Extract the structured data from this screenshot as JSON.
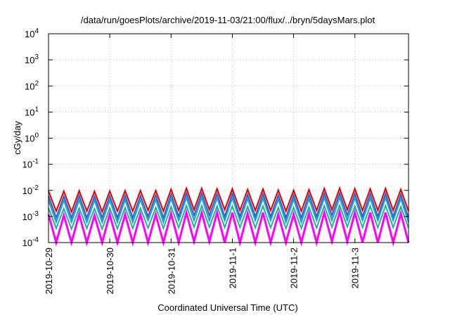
{
  "chart_data": {
    "type": "line",
    "title": "/data/run/goesPlots/archive/2019-11-03/21:00/flux/../bryn/5daysMars.plot",
    "xlabel": "Coordinated Universal Time (UTC)",
    "ylabel": "cGy/day",
    "yscale": "log",
    "ylim": [
      0.0001,
      10000
    ],
    "xlim": [
      "2019-10-29T00:00",
      "2019-11-03T21:00"
    ],
    "x_ticks": [
      "2019-10-29",
      "2019-10-30",
      "2019-10-31",
      "2019-11-1",
      "2019-11-2",
      "2019-11-3"
    ],
    "y_ticks": [
      {
        "value": 0.0001,
        "base": "10",
        "exp": "-4"
      },
      {
        "value": 0.001,
        "base": "10",
        "exp": "-3"
      },
      {
        "value": 0.01,
        "base": "10",
        "exp": "-2"
      },
      {
        "value": 0.1,
        "base": "10",
        "exp": "-1"
      },
      {
        "value": 1,
        "base": "10",
        "exp": "0"
      },
      {
        "value": 10,
        "base": "10",
        "exp": "1"
      },
      {
        "value": 100,
        "base": "10",
        "exp": "2"
      },
      {
        "value": 1000,
        "base": "10",
        "exp": "3"
      },
      {
        "value": 10000,
        "base": "10",
        "exp": "4"
      }
    ],
    "grid": true,
    "sawtooth_period_hours": 3,
    "series": [
      {
        "color": "#e00000",
        "peak": 0.0095,
        "trough": 0.0016,
        "values": [
          0.0095,
          0.0016,
          0.0093,
          0.0015,
          0.0096,
          0.0016,
          0.0092,
          0.0015,
          0.0094,
          0.0016,
          0.0098,
          0.0016,
          0.0097,
          0.0017,
          0.0099,
          0.0016,
          0.011,
          0.0017,
          0.012,
          0.0018,
          0.012,
          0.0018,
          0.0115,
          0.0018,
          0.0115,
          0.0017,
          0.0108,
          0.0017,
          0.0112,
          0.0017,
          0.0102,
          0.0016,
          0.0101,
          0.0016,
          0.0106,
          0.0017,
          0.0118,
          0.0018,
          0.0121,
          0.0018,
          0.0116,
          0.0017,
          0.0114,
          0.0017,
          0.0117,
          0.0017,
          0.0108,
          0.0016
        ]
      },
      {
        "color": "#3060d0",
        "peak": 0.0062,
        "trough": 0.0009,
        "values": [
          0.0062,
          0.0009,
          0.006,
          0.0009,
          0.0063,
          0.0009,
          0.006,
          0.0009,
          0.0061,
          0.0009,
          0.0064,
          0.0009,
          0.0063,
          0.001,
          0.0065,
          0.0009,
          0.0071,
          0.001,
          0.0078,
          0.0011,
          0.0078,
          0.0011,
          0.0075,
          0.001,
          0.0075,
          0.001,
          0.007,
          0.001,
          0.0073,
          0.001,
          0.0066,
          0.0009,
          0.0066,
          0.0009,
          0.0069,
          0.001,
          0.0077,
          0.0011,
          0.0079,
          0.0011,
          0.0075,
          0.001,
          0.0074,
          0.001,
          0.0076,
          0.001,
          0.007,
          0.0009
        ]
      },
      {
        "color": "#20a0c0",
        "peak": 0.0042,
        "trough": 0.0006,
        "values": [
          0.0042,
          0.0006,
          0.0041,
          0.0006,
          0.0043,
          0.0006,
          0.0041,
          0.0006,
          0.0042,
          0.0006,
          0.0044,
          0.0006,
          0.0043,
          0.0007,
          0.0044,
          0.0006,
          0.0049,
          0.0007,
          0.0053,
          0.0007,
          0.0053,
          0.0007,
          0.0051,
          0.0007,
          0.0051,
          0.0007,
          0.0048,
          0.0007,
          0.005,
          0.0007,
          0.0045,
          0.0006,
          0.0045,
          0.0006,
          0.0047,
          0.0007,
          0.0052,
          0.0007,
          0.0054,
          0.0007,
          0.0051,
          0.0007,
          0.005,
          0.0007,
          0.0052,
          0.0007,
          0.0048,
          0.0006
        ]
      },
      {
        "color": "#20b0a0",
        "peak": 0.0021,
        "trough": 0.00035,
        "values": [
          0.0021,
          0.00035,
          0.002,
          0.00033,
          0.0021,
          0.00035,
          0.002,
          0.00033,
          0.0021,
          0.00034,
          0.0022,
          0.00035,
          0.0021,
          0.00036,
          0.0022,
          0.00035,
          0.0024,
          0.00037,
          0.0026,
          0.00039,
          0.0026,
          0.00039,
          0.0025,
          0.00038,
          0.0025,
          0.00038,
          0.0024,
          0.00037,
          0.0025,
          0.00037,
          0.0022,
          0.00035,
          0.0022,
          0.00035,
          0.0023,
          0.00036,
          0.0026,
          0.00039,
          0.0027,
          0.0004,
          0.0025,
          0.00038,
          0.0025,
          0.00037,
          0.0026,
          0.00038,
          0.0024,
          0.00036
        ]
      },
      {
        "color": "#ff00ff",
        "peak": 0.0012,
        "trough": 9e-05,
        "values": [
          0.0012,
          9e-05,
          0.0011,
          8e-05,
          0.0012,
          9e-05,
          0.0011,
          8e-05,
          0.0012,
          9e-05,
          0.0012,
          9e-05,
          0.0012,
          0.0001,
          0.0012,
          9e-05,
          0.0013,
          0.0001,
          0.0014,
          0.00011,
          0.0014,
          0.00011,
          0.0014,
          0.0001,
          0.0014,
          0.0001,
          0.0013,
          0.0001,
          0.0014,
          0.0001,
          0.0012,
          9e-05,
          0.0012,
          9e-05,
          0.0013,
          0.0001,
          0.0014,
          0.00011,
          0.0015,
          0.00011,
          0.0014,
          0.0001,
          0.0014,
          0.0001,
          0.0014,
          0.0001,
          0.0013,
          9e-05
        ]
      }
    ]
  }
}
